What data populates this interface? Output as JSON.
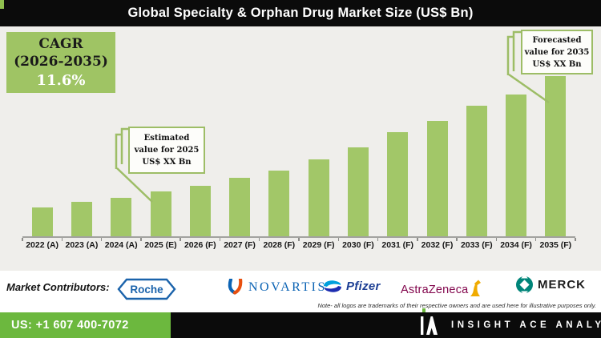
{
  "title": "Global Specialty & Orphan Drug Market Size (US$ Bn)",
  "cagr_box": {
    "label": "CAGR",
    "period": "(2026-2035)",
    "value": "11.6%"
  },
  "callouts": {
    "estimated": {
      "lines": [
        "Estimated",
        "value for 2025",
        "US$ XX Bn"
      ]
    },
    "forecasted": {
      "lines": [
        "Forecasted",
        "value for 2035",
        "US$ XX Bn"
      ]
    }
  },
  "chart_data": {
    "type": "bar",
    "title": "Global Specialty & Orphan Drug Market Size (US$ Bn)",
    "unit": "US$ Bn",
    "categories": [
      "2022 (A)",
      "2023 (A)",
      "2024 (A)",
      "2025 (E)",
      "2026 (F)",
      "2027 (F)",
      "2028 (F)",
      "2029 (F)",
      "2030 (F)",
      "2031 (F)",
      "2032 (F)",
      "2033 (F)",
      "2034 (F)",
      "2035 (F)"
    ],
    "values_display": "XX",
    "relative_values": [
      36,
      43,
      48,
      56,
      63,
      73,
      82,
      96,
      111,
      130,
      144,
      163,
      177,
      200
    ],
    "cagr_2026_2035": "11.6%",
    "bar_color": "#a2c768",
    "xlabel": "",
    "ylabel": "",
    "grid": false,
    "legend": "none"
  },
  "contributors": {
    "label": "Market Contributors:",
    "logos": {
      "roche": "Roche",
      "novartis": "NOVARTIS",
      "pfizer": "Pfizer",
      "astrazeneca": "AstraZeneca",
      "merck": "MERCK"
    },
    "note": "Note- all logos are trademarks of their respective owners and are used here for illustrative purposes only."
  },
  "footer": {
    "phone": "US: +1 607 400-7072",
    "brand": "INSIGHT ACE ANALYTIC"
  },
  "colors": {
    "bar_green": "#a2c768",
    "cagr_box_green": "#9fc464",
    "callout_border_green": "#9dbd66",
    "footer_green": "#6cb83e",
    "title_bar_bg": "#0b0b0b",
    "chart_bg": "#efeeeb",
    "roche_blue": "#1b63ab",
    "novartis_blue": "#0b63b4",
    "pfizer_blue": "#1d3f94",
    "astrazeneca_mulberry": "#83084e",
    "astrazeneca_gold": "#f0ab00",
    "merck_teal": "#008579"
  }
}
